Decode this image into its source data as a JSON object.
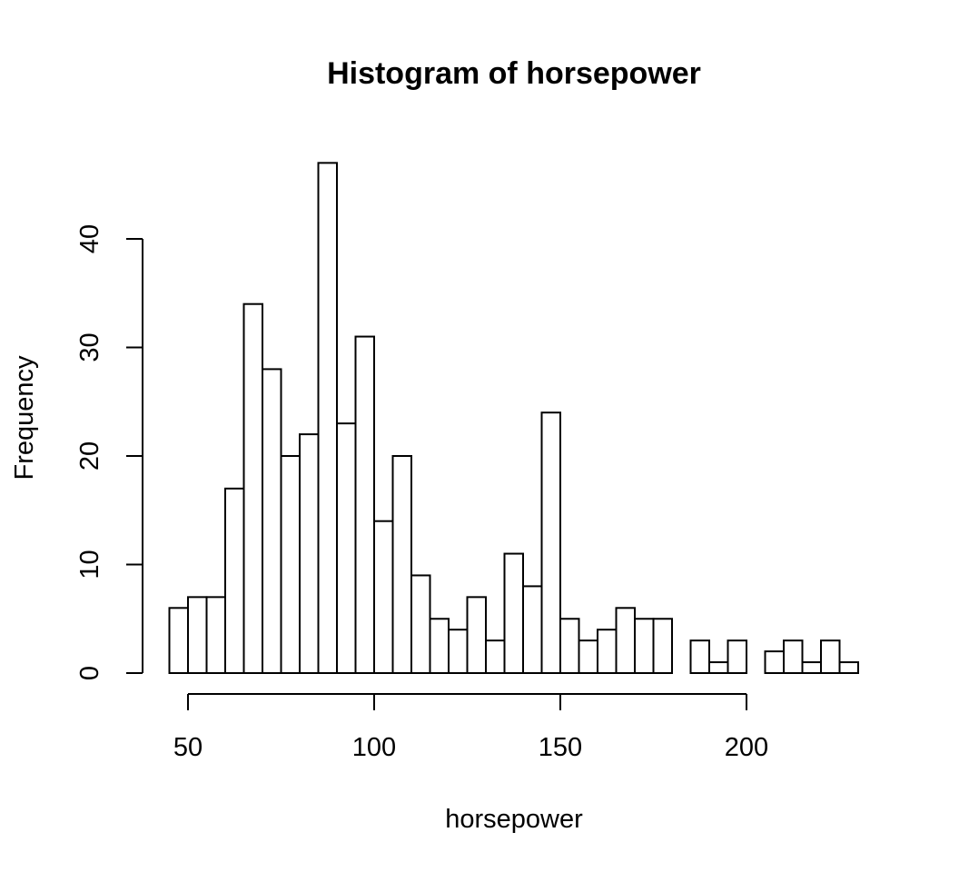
{
  "chart_data": {
    "type": "bar",
    "title": "Histogram of horsepower",
    "xlabel": "horsepower",
    "ylabel": "Frequency",
    "xlim": [
      45,
      230
    ],
    "ylim": [
      0,
      47
    ],
    "bin_width": 5,
    "bin_start": 45,
    "x_ticks": [
      50,
      100,
      150,
      200
    ],
    "y_ticks": [
      0,
      10,
      20,
      30,
      40
    ],
    "x_tick_labels": [
      "50",
      "100",
      "150",
      "200"
    ],
    "y_tick_labels": [
      "0",
      "10",
      "20",
      "30",
      "40"
    ],
    "bins": [
      {
        "start": 45,
        "end": 50,
        "count": 6
      },
      {
        "start": 50,
        "end": 55,
        "count": 7
      },
      {
        "start": 55,
        "end": 60,
        "count": 7
      },
      {
        "start": 60,
        "end": 65,
        "count": 17
      },
      {
        "start": 65,
        "end": 70,
        "count": 34
      },
      {
        "start": 70,
        "end": 75,
        "count": 28
      },
      {
        "start": 75,
        "end": 80,
        "count": 20
      },
      {
        "start": 80,
        "end": 85,
        "count": 22
      },
      {
        "start": 85,
        "end": 90,
        "count": 47
      },
      {
        "start": 90,
        "end": 95,
        "count": 23
      },
      {
        "start": 95,
        "end": 100,
        "count": 31
      },
      {
        "start": 100,
        "end": 105,
        "count": 14
      },
      {
        "start": 105,
        "end": 110,
        "count": 20
      },
      {
        "start": 110,
        "end": 115,
        "count": 9
      },
      {
        "start": 115,
        "end": 120,
        "count": 5
      },
      {
        "start": 120,
        "end": 125,
        "count": 4
      },
      {
        "start": 125,
        "end": 130,
        "count": 7
      },
      {
        "start": 130,
        "end": 135,
        "count": 3
      },
      {
        "start": 135,
        "end": 140,
        "count": 11
      },
      {
        "start": 140,
        "end": 145,
        "count": 8
      },
      {
        "start": 145,
        "end": 150,
        "count": 24
      },
      {
        "start": 150,
        "end": 155,
        "count": 5
      },
      {
        "start": 155,
        "end": 160,
        "count": 3
      },
      {
        "start": 160,
        "end": 165,
        "count": 4
      },
      {
        "start": 165,
        "end": 170,
        "count": 6
      },
      {
        "start": 170,
        "end": 175,
        "count": 5
      },
      {
        "start": 175,
        "end": 180,
        "count": 5
      },
      {
        "start": 180,
        "end": 185,
        "count": 0
      },
      {
        "start": 185,
        "end": 190,
        "count": 3
      },
      {
        "start": 190,
        "end": 195,
        "count": 1
      },
      {
        "start": 195,
        "end": 200,
        "count": 3
      },
      {
        "start": 200,
        "end": 205,
        "count": 0
      },
      {
        "start": 205,
        "end": 210,
        "count": 2
      },
      {
        "start": 210,
        "end": 215,
        "count": 3
      },
      {
        "start": 215,
        "end": 220,
        "count": 1
      },
      {
        "start": 220,
        "end": 225,
        "count": 3
      },
      {
        "start": 225,
        "end": 230,
        "count": 1
      }
    ],
    "colors": {
      "bar_fill": "#ffffff",
      "bar_stroke": "#000000",
      "axis": "#000000",
      "background": "#ffffff"
    }
  }
}
